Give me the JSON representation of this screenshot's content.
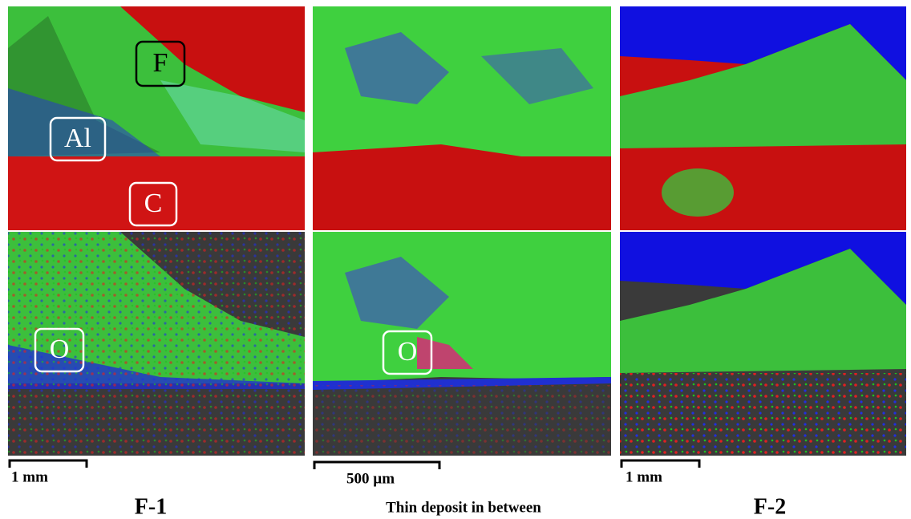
{
  "columns": [
    {
      "title": "F-1",
      "scale_bar": "1 mm",
      "top_labels": [
        "F",
        "Al",
        "C"
      ],
      "bottom_labels": [
        "O"
      ]
    },
    {
      "title": "Thin deposit in between",
      "scale_bar": "500 µm",
      "bottom_labels": [
        "O"
      ]
    },
    {
      "title": "F-2",
      "scale_bar": "1 mm"
    }
  ]
}
